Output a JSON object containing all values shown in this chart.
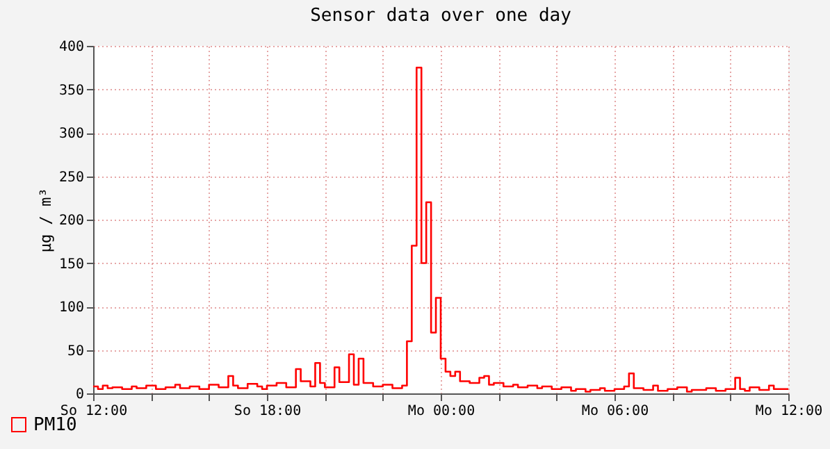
{
  "chart_data": {
    "type": "step",
    "title": "Sensor data over one day",
    "ylabel": "µg / m³",
    "categories": [
      "So 12:00",
      null,
      null,
      null,
      null,
      null,
      null,
      null,
      null,
      null,
      null,
      null,
      null,
      null,
      null,
      null,
      null,
      null,
      null,
      null,
      null,
      null,
      null,
      null,
      null,
      null,
      null,
      null,
      null,
      null,
      null,
      null,
      null,
      null,
      null,
      null,
      "So 18:00",
      null,
      null,
      null,
      null,
      null,
      null,
      null,
      null,
      null,
      null,
      null,
      null,
      null,
      null,
      null,
      null,
      null,
      null,
      null,
      null,
      null,
      null,
      null,
      null,
      null,
      null,
      null,
      null,
      null,
      null,
      null,
      null,
      null,
      null,
      null,
      "Mo 00:00",
      null,
      null,
      null,
      null,
      null,
      null,
      null,
      null,
      null,
      null,
      null,
      null,
      null,
      null,
      null,
      null,
      null,
      null,
      null,
      null,
      null,
      null,
      null,
      null,
      null,
      null,
      null,
      null,
      null,
      null,
      null,
      null,
      null,
      null,
      null,
      "Mo 06:00",
      null,
      null,
      null,
      null,
      null,
      null,
      null,
      null,
      null,
      null,
      null,
      null,
      null,
      null,
      null,
      null,
      null,
      null,
      null,
      null,
      null,
      null,
      null,
      null,
      null,
      null,
      null,
      null,
      null,
      null,
      null,
      null,
      null,
      null,
      null,
      "Mo 12:00"
    ],
    "series": [
      {
        "name": "PM10",
        "color": "#ff0000",
        "values": [
          8,
          5,
          9,
          6,
          7,
          7,
          5,
          5,
          8,
          6,
          6,
          9,
          9,
          5,
          5,
          7,
          7,
          10,
          6,
          6,
          8,
          8,
          5,
          5,
          10,
          10,
          7,
          7,
          20,
          9,
          6,
          6,
          11,
          11,
          8,
          5,
          9,
          9,
          12,
          12,
          7,
          7,
          28,
          14,
          14,
          8,
          35,
          12,
          7,
          7,
          30,
          13,
          13,
          45,
          10,
          40,
          12,
          12,
          8,
          8,
          10,
          10,
          6,
          6,
          9,
          60,
          170,
          375,
          150,
          220,
          70,
          110,
          40,
          25,
          20,
          25,
          14,
          14,
          12,
          12,
          18,
          20,
          10,
          12,
          12,
          8,
          8,
          10,
          7,
          7,
          9,
          9,
          6,
          8,
          8,
          5,
          5,
          7,
          7,
          3,
          5,
          5,
          2,
          4,
          4,
          6,
          3,
          3,
          5,
          5,
          8,
          23,
          6,
          6,
          4,
          4,
          9,
          3,
          3,
          5,
          5,
          7,
          7,
          2,
          4,
          4,
          4,
          6,
          6,
          3,
          3,
          5,
          5,
          18,
          5,
          3,
          7,
          7,
          4,
          4,
          9,
          5,
          5,
          5,
          5
        ]
      }
    ],
    "ylim": [
      0,
      400
    ],
    "yticks": [
      0,
      50,
      100,
      150,
      200,
      250,
      300,
      350,
      400
    ],
    "grid": true,
    "legend": "bottom left",
    "line_style": "solid",
    "marker": "none"
  }
}
